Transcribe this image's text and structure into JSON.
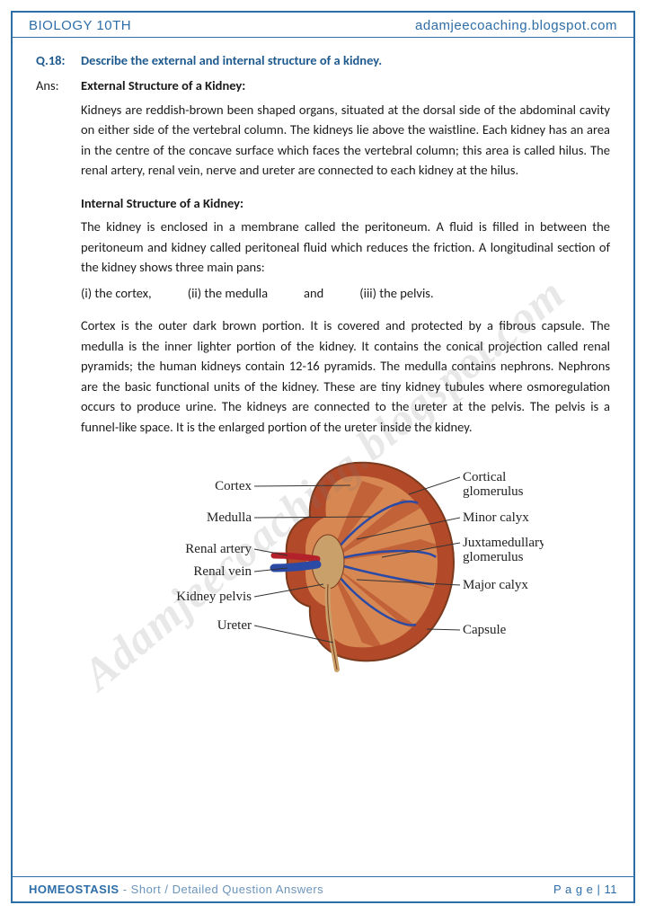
{
  "header": {
    "left": "BIOLOGY 10TH",
    "right": "adamjeecoaching.blogspot.com"
  },
  "watermark": "Adamjeecoaching.blogspot.com",
  "question": {
    "label": "Q.18:",
    "text": "Describe the external and internal structure of a kidney."
  },
  "answer": {
    "label": "Ans:",
    "heading1": "External Structure of a Kidney:",
    "para1": "Kidneys are reddish-brown been shaped organs, situated at the dorsal side of the abdominal cavity on either side of the vertebral column. The kidneys lie above the waistline. Each kidney has an area in the centre of the concave surface which faces the vertebral column; this area is called hilus. The renal artery, renal vein, nerve and ureter are connected to each kidney at the hilus.",
    "heading2": "Internal Structure of a Kidney:",
    "para2": "The kidney is enclosed in a membrane called the peritoneum. A fluid is filled in between the peritoneum and kidney called peritoneal fluid which reduces the friction. A longitudinal section of the kidney shows three main pans:",
    "parts": {
      "i": "(i)    the cortex,",
      "ii": "(ii)   the medulla",
      "and": "and",
      "iii": "(iii)  the pelvis."
    },
    "para3": "Cortex is the outer dark brown portion. It is covered and protected by a fibrous capsule. The medulla is the inner lighter portion of the kidney. It contains the conical projection called renal pyramids; the human kidneys contain 12-16 pyramids. The medulla contains nephrons. Nephrons are the basic functional units of the kidney. These are tiny kidney tubules where osmoregulation occurs to produce urine. The kidneys are connected to the ureter at the pelvis. The pelvis is a funnel-like space. It is the enlarged portion of the ureter inside the kidney."
  },
  "diagram": {
    "labels_left": [
      "Cortex",
      "Medulla",
      "Renal artery",
      "Renal vein",
      "Kidney pelvis",
      "Ureter"
    ],
    "labels_right": [
      "Cortical glomerulus",
      "Minor calyx",
      "Juxtamedullary glomerulus",
      "Major calyx",
      "Capsule"
    ],
    "colors": {
      "outer": "#b24a2a",
      "inner": "#d98a54",
      "vein": "#2b4aa6",
      "artery": "#b3212a",
      "pelvis": "#caa06a",
      "capsule_edge": "#7a3a1e",
      "leader": "#333333"
    }
  },
  "footer": {
    "chapter": "HOMEOSTASIS",
    "subtitle": " - Short / Detailed Question Answers",
    "page": "P a g e  | 11"
  }
}
